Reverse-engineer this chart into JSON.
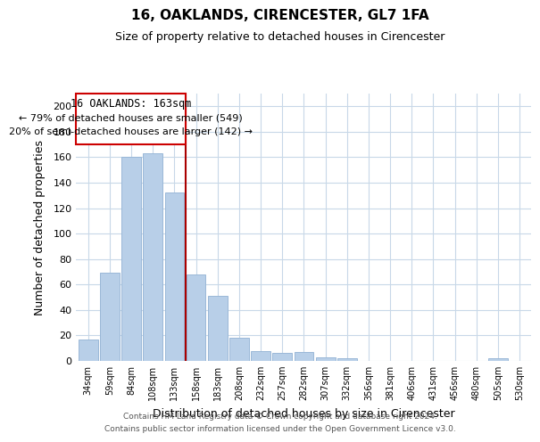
{
  "title": "16, OAKLANDS, CIRENCESTER, GL7 1FA",
  "subtitle": "Size of property relative to detached houses in Cirencester",
  "xlabel": "Distribution of detached houses by size in Cirencester",
  "ylabel": "Number of detached properties",
  "bar_labels": [
    "34sqm",
    "59sqm",
    "84sqm",
    "108sqm",
    "133sqm",
    "158sqm",
    "183sqm",
    "208sqm",
    "232sqm",
    "257sqm",
    "282sqm",
    "307sqm",
    "332sqm",
    "356sqm",
    "381sqm",
    "406sqm",
    "431sqm",
    "456sqm",
    "480sqm",
    "505sqm",
    "530sqm"
  ],
  "bar_values": [
    17,
    69,
    160,
    163,
    132,
    68,
    51,
    18,
    8,
    6,
    7,
    3,
    2,
    0,
    0,
    0,
    0,
    0,
    0,
    2,
    0
  ],
  "bar_color": "#b8cfe8",
  "bar_edge_color": "#9ab8d8",
  "ylim": [
    0,
    210
  ],
  "yticks": [
    0,
    20,
    40,
    60,
    80,
    100,
    120,
    140,
    160,
    180,
    200
  ],
  "property_line_color": "#aa0000",
  "annotation_title": "16 OAKLANDS: 163sqm",
  "annotation_line1": "← 79% of detached houses are smaller (549)",
  "annotation_line2": "20% of semi-detached houses are larger (142) →",
  "annotation_box_color": "#ffffff",
  "annotation_box_edge": "#cc0000",
  "footer_line1": "Contains HM Land Registry data © Crown copyright and database right 2024.",
  "footer_line2": "Contains public sector information licensed under the Open Government Licence v3.0.",
  "background_color": "#ffffff",
  "grid_color": "#c8d8e8"
}
